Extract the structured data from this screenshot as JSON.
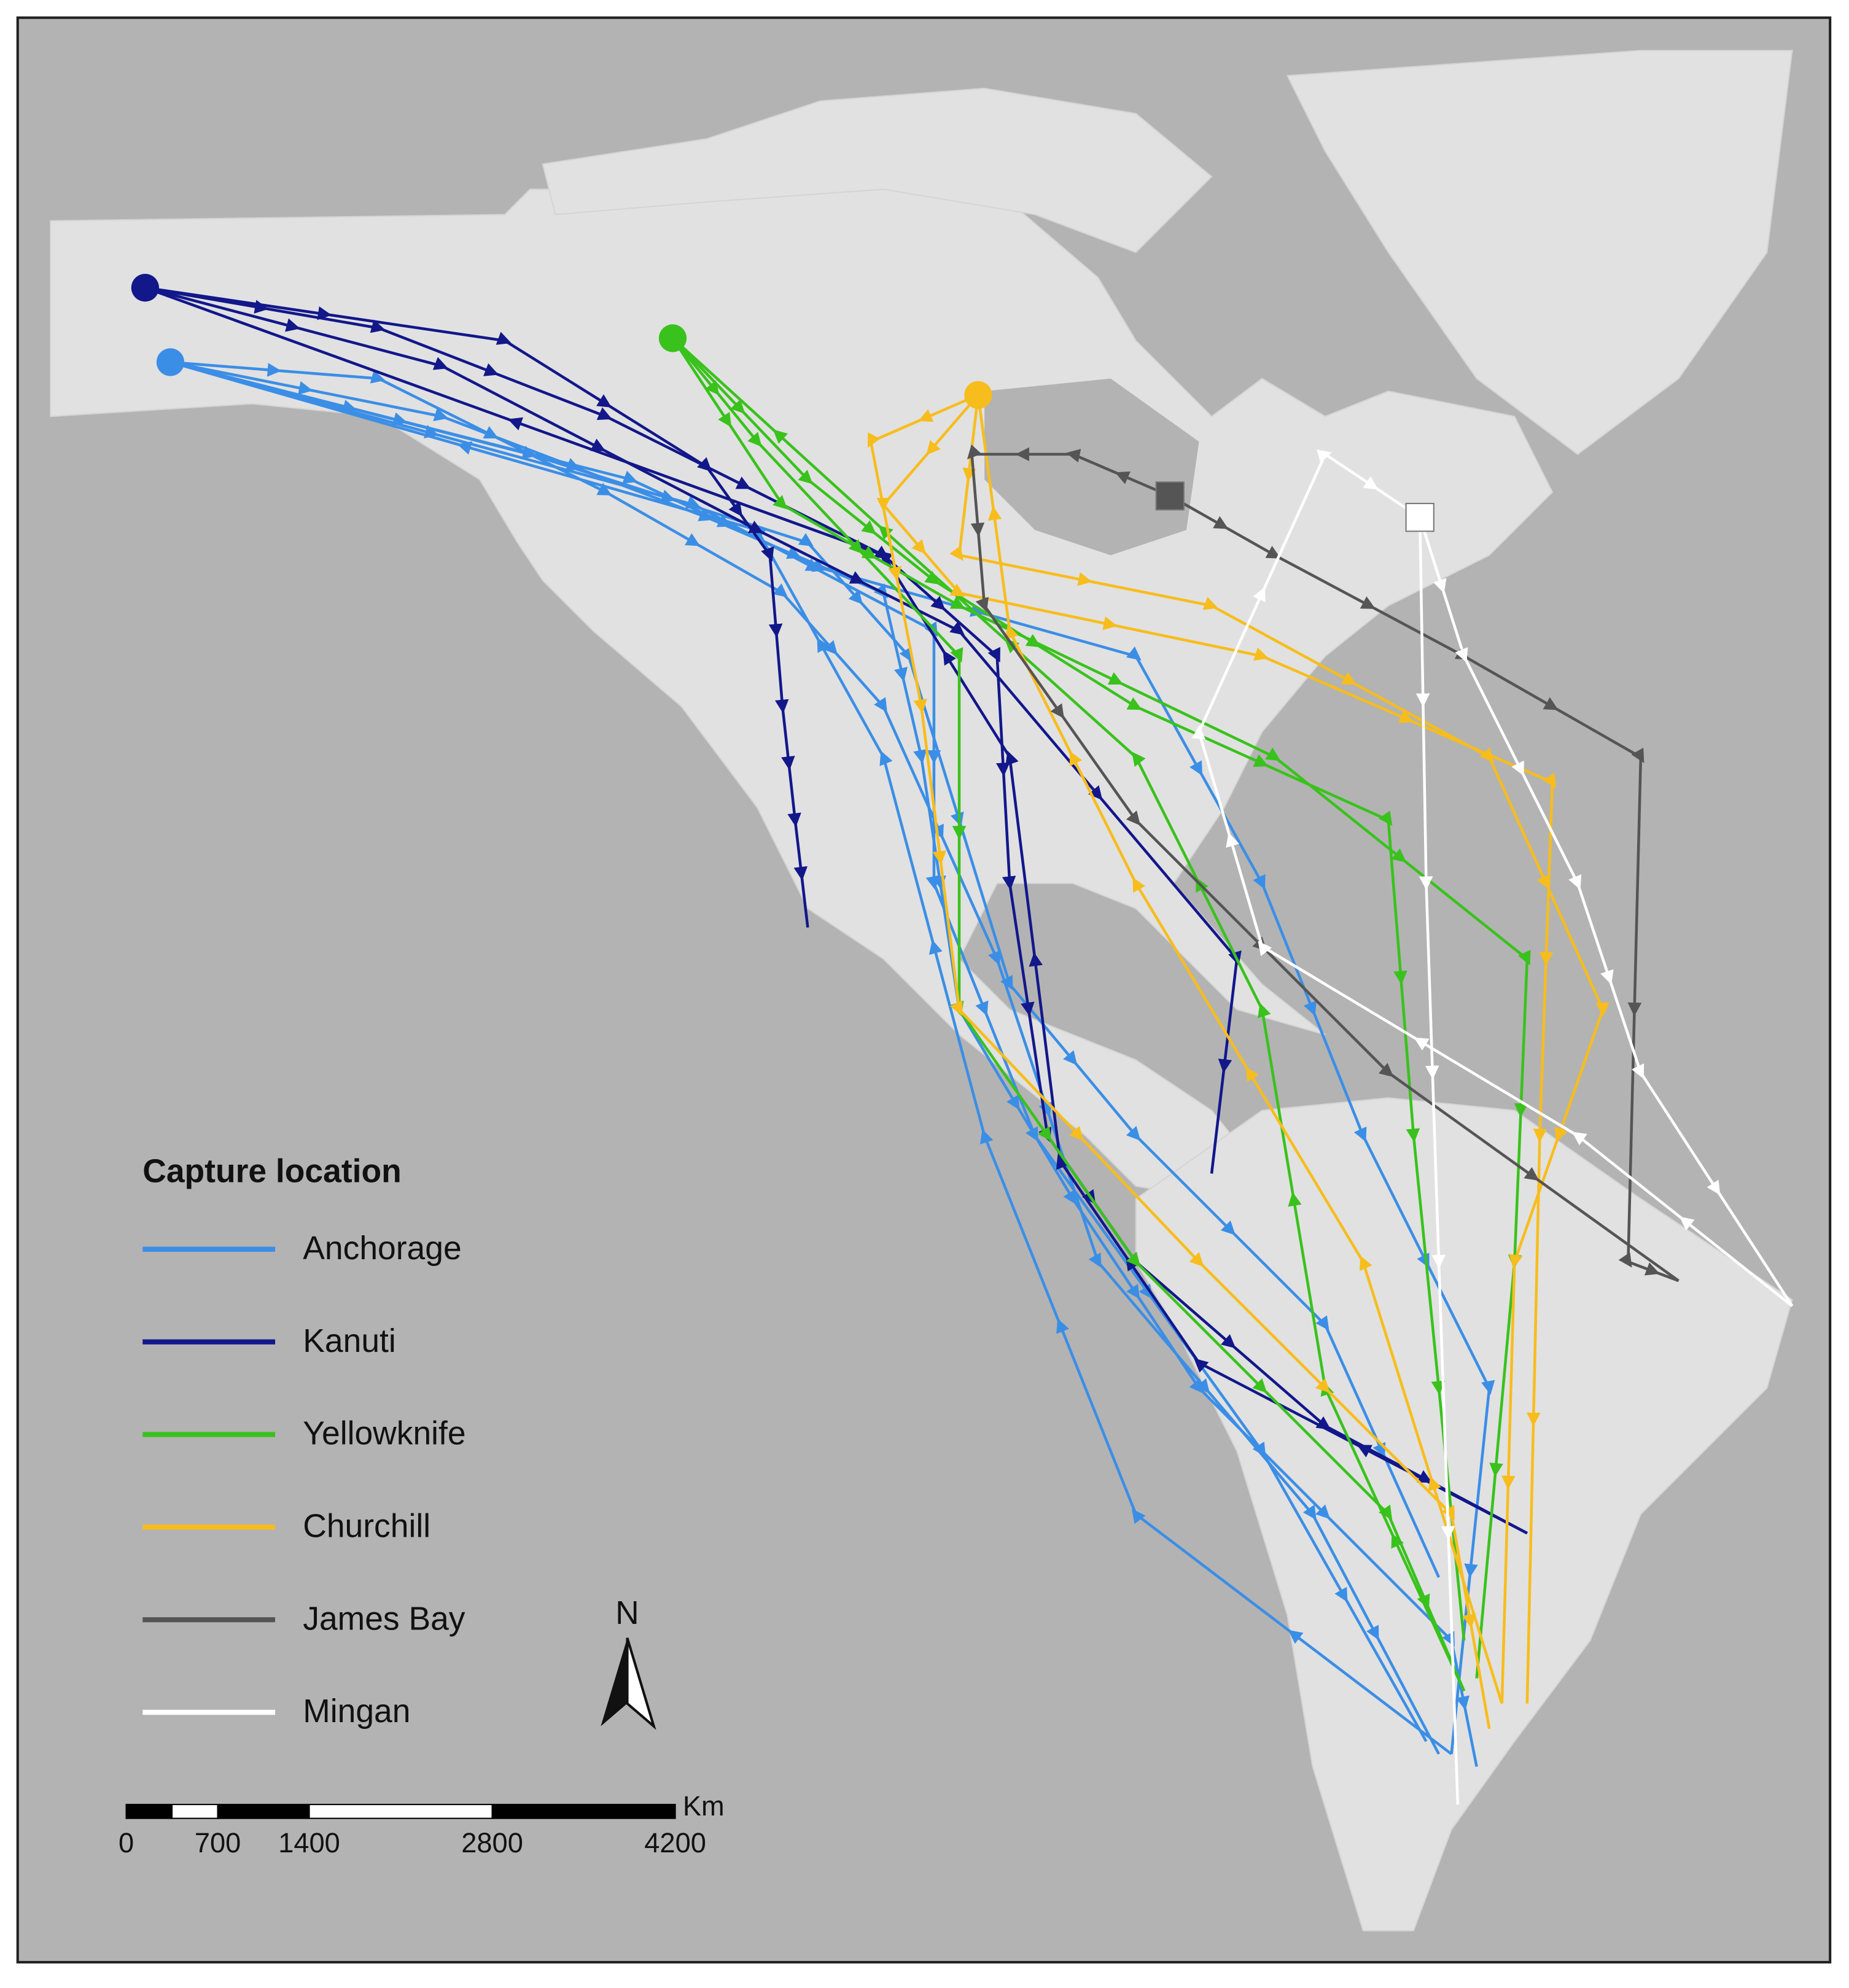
{
  "legend": {
    "title": "Capture location",
    "entries": [
      {
        "name": "Anchorage",
        "color": "#3b8ee6"
      },
      {
        "name": "Kanuti",
        "color": "#12178a"
      },
      {
        "name": "Yellowknife",
        "color": "#39c21c"
      },
      {
        "name": "Churchill",
        "color": "#f7bd1d"
      },
      {
        "name": "James Bay",
        "color": "#555555"
      },
      {
        "name": "Mingan",
        "color": "#ffffff"
      }
    ]
  },
  "north_arrow": {
    "label": "N"
  },
  "scale_bar": {
    "unit": "Km",
    "ticks": [
      0,
      700,
      1400,
      2800,
      4200
    ]
  }
}
